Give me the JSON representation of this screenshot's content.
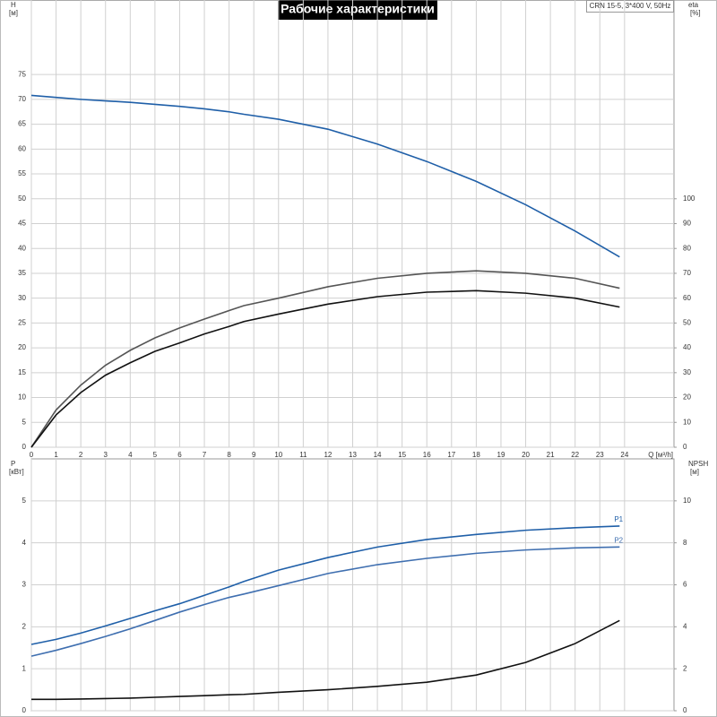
{
  "chart_data": [
    {
      "type": "line",
      "title": "Рабочие характеристики",
      "subtitle": "CRN 15-5, 3*400 V, 50Hz",
      "ylabel": "H",
      "yunit": "[м]",
      "y2label": "eta",
      "y2unit": "[%]",
      "xlabel": "Q [м³/h]",
      "x": [
        0,
        1,
        2,
        3,
        4,
        5,
        6,
        7,
        8,
        8.6,
        10,
        12,
        14,
        16,
        18,
        20,
        22,
        23.8
      ],
      "xlim": [
        0,
        26
      ],
      "xticks": [
        0,
        1,
        2,
        3,
        4,
        5,
        6,
        7,
        8,
        9,
        10,
        11,
        12,
        13,
        14,
        15,
        16,
        17,
        18,
        19,
        20,
        21,
        22,
        23,
        24
      ],
      "ylim": [
        0,
        90
      ],
      "yticks": [
        0,
        5,
        10,
        15,
        20,
        25,
        30,
        35,
        40,
        45,
        50,
        55,
        60,
        65,
        70,
        75
      ],
      "y2lim": [
        0,
        180
      ],
      "y2ticks": [
        0,
        10,
        20,
        30,
        40,
        50,
        60,
        70,
        80,
        90,
        100
      ],
      "grid": true,
      "series": [
        {
          "color": "#1f5fa8",
          "values": [
            70.8,
            70.4,
            70,
            69.7,
            69.4,
            69,
            68.6,
            68.1,
            67.5,
            67,
            66,
            64,
            61,
            57.5,
            53.5,
            48.8,
            43.5,
            38.3
          ]
        },
        {
          "color": "#555555",
          "axis": "y2",
          "values": [
            0,
            15,
            25,
            33,
            39,
            44,
            48,
            51.6,
            55,
            57,
            60,
            64.6,
            68,
            70,
            71,
            70,
            68,
            64
          ]
        },
        {
          "color": "#111111",
          "axis": "y2",
          "values": [
            0,
            13,
            22,
            29,
            34,
            38.6,
            42,
            45.6,
            48.6,
            50.6,
            53.6,
            57.6,
            60.6,
            62.4,
            63,
            62,
            60,
            56.4
          ]
        }
      ]
    },
    {
      "type": "line",
      "ylabel": "P",
      "yunit": "[кВт]",
      "y2label": "NPSH",
      "y2unit": "[м]",
      "x": [
        0,
        1,
        2,
        3,
        4,
        5,
        6,
        7,
        8,
        8.6,
        10,
        12,
        14,
        16,
        18,
        20,
        22,
        23.8
      ],
      "xlim": [
        0,
        26
      ],
      "ylim": [
        0,
        6
      ],
      "yticks": [
        0,
        1,
        2,
        3,
        4,
        5
      ],
      "y2lim": [
        0,
        12
      ],
      "y2ticks": [
        0,
        2,
        4,
        6,
        8,
        10
      ],
      "grid": true,
      "series": [
        {
          "name": "P1",
          "color": "#1f5fa8",
          "values": [
            1.58,
            1.7,
            1.85,
            2.02,
            2.2,
            2.38,
            2.55,
            2.75,
            2.95,
            3.08,
            3.35,
            3.65,
            3.9,
            4.08,
            4.2,
            4.3,
            4.36,
            4.4
          ]
        },
        {
          "name": "P2",
          "color": "#3f6fb0",
          "values": [
            1.3,
            1.44,
            1.6,
            1.77,
            1.95,
            2.15,
            2.35,
            2.53,
            2.7,
            2.78,
            2.98,
            3.27,
            3.48,
            3.63,
            3.75,
            3.83,
            3.88,
            3.9
          ]
        },
        {
          "color": "#111111",
          "axis": "y2",
          "values": [
            0.54,
            0.54,
            0.56,
            0.58,
            0.6,
            0.64,
            0.68,
            0.72,
            0.76,
            0.78,
            0.88,
            1.0,
            1.16,
            1.36,
            1.7,
            2.3,
            3.2,
            4.3
          ]
        }
      ]
    }
  ]
}
